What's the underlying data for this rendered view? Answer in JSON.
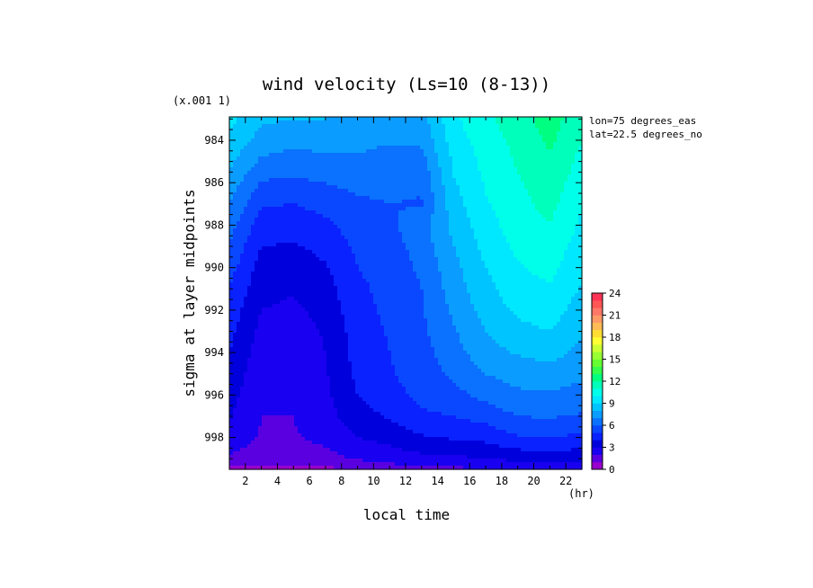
{
  "chart_data": {
    "type": "heatmap",
    "title": "wind velocity (Ls=10 (8-13))",
    "xlabel": "local time",
    "ylabel": "sigma at layer midpoints",
    "x_unit": "(hr)",
    "y_scale_note": "(x.001 1)",
    "annotations": [
      "lon=75 degrees_eas",
      "lat=22.5 degrees_no"
    ],
    "xlim": [
      1,
      23
    ],
    "ylim": [
      999.5,
      982.9
    ],
    "x_ticks": [
      2,
      4,
      6,
      8,
      10,
      12,
      14,
      16,
      18,
      20,
      22
    ],
    "y_ticks": [
      984,
      986,
      988,
      990,
      992,
      994,
      996,
      998
    ],
    "x": [
      1,
      3,
      5,
      7,
      9,
      11,
      13,
      15,
      17,
      19,
      21,
      23
    ],
    "y": [
      983,
      984,
      985,
      986,
      987,
      988,
      989,
      990,
      991,
      992,
      993,
      994,
      995,
      996,
      997,
      998,
      999,
      999.5
    ],
    "z": [
      [
        9.3,
        8.2,
        8.0,
        8.0,
        7.8,
        7.5,
        7.6,
        9.8,
        10.8,
        11.5,
        12.5,
        11.3
      ],
      [
        8.8,
        7.6,
        7.2,
        7.4,
        7.3,
        7.1,
        7.2,
        9.5,
        10.5,
        11.3,
        12.2,
        11.0
      ],
      [
        8.2,
        6.8,
        6.6,
        6.8,
        6.8,
        6.6,
        6.6,
        9.2,
        10.3,
        11.1,
        11.9,
        10.7
      ],
      [
        7.6,
        5.9,
        5.8,
        6.0,
        6.3,
        6.3,
        6.2,
        8.9,
        10.1,
        10.9,
        11.6,
        10.4
      ],
      [
        7.0,
        5.1,
        5.0,
        5.3,
        5.8,
        6.0,
        5.9,
        8.6,
        9.9,
        10.7,
        11.3,
        10.1
      ],
      [
        6.4,
        4.5,
        4.4,
        4.8,
        5.5,
        5.8,
        6.6,
        8.3,
        9.6,
        10.5,
        11.0,
        9.8
      ],
      [
        5.9,
        4.0,
        3.9,
        4.3,
        5.2,
        5.6,
        6.4,
        8.0,
        9.3,
        10.2,
        10.6,
        9.5
      ],
      [
        5.4,
        3.6,
        3.4,
        3.9,
        5.0,
        5.4,
        6.2,
        7.7,
        9.0,
        9.9,
        10.3,
        9.2
      ],
      [
        5.0,
        3.3,
        3.1,
        3.6,
        4.8,
        5.3,
        6.0,
        7.5,
        8.7,
        9.6,
        9.9,
        8.9
      ],
      [
        4.6,
        3.0,
        2.8,
        3.3,
        4.7,
        5.2,
        5.9,
        7.2,
        8.4,
        9.2,
        9.5,
        8.5
      ],
      [
        4.3,
        2.7,
        2.6,
        3.1,
        4.5,
        5.1,
        5.8,
        6.9,
        8.0,
        8.7,
        9.0,
        8.1
      ],
      [
        4.0,
        2.5,
        2.4,
        3.0,
        4.4,
        5.0,
        5.6,
        6.6,
        7.6,
        8.1,
        8.4,
        7.7
      ],
      [
        3.7,
        2.3,
        2.2,
        2.9,
        4.2,
        4.9,
        5.5,
        6.2,
        7.0,
        7.4,
        7.6,
        7.2
      ],
      [
        3.4,
        2.1,
        2.0,
        2.8,
        4.0,
        4.6,
        5.3,
        5.7,
        6.3,
        6.8,
        6.9,
        6.6
      ],
      [
        3.1,
        2.0,
        2.0,
        2.6,
        3.6,
        4.1,
        4.8,
        5.0,
        5.4,
        6.0,
        6.1,
        5.9
      ],
      [
        2.7,
        1.9,
        1.9,
        2.3,
        3.0,
        3.4,
        3.9,
        4.1,
        4.3,
        4.9,
        5.0,
        4.8
      ],
      [
        1.8,
        1.4,
        1.4,
        1.6,
        2.1,
        2.4,
        2.7,
        2.8,
        3.0,
        3.3,
        3.4,
        3.3
      ],
      [
        0.7,
        0.6,
        0.6,
        0.7,
        1.2,
        1.5,
        1.7,
        1.8,
        1.9,
        2.0,
        2.1,
        2.0
      ]
    ],
    "colorbar": {
      "ticks": [
        0,
        3,
        6,
        9,
        12,
        15,
        18,
        21,
        24
      ],
      "levels": [
        0,
        1,
        2,
        3,
        4,
        5,
        6,
        7,
        8,
        9,
        10,
        11,
        12,
        13,
        14,
        15,
        16,
        17,
        18,
        19,
        20,
        21,
        22,
        23,
        24
      ],
      "colors": [
        "#9900cc",
        "#5a00e0",
        "#1a00f0",
        "#0000dc",
        "#0a22ff",
        "#0a48ff",
        "#0a72ff",
        "#0a9cff",
        "#00c4ff",
        "#00e8ff",
        "#00ffea",
        "#00ffba",
        "#00ff80",
        "#33ff4d",
        "#66ff33",
        "#99ff33",
        "#ccff33",
        "#ffff33",
        "#ffdd33",
        "#ffbb55",
        "#ff9966",
        "#ff7766",
        "#ff5555",
        "#ff3355"
      ]
    },
    "grid": false,
    "legend": "right (colorbar)"
  }
}
